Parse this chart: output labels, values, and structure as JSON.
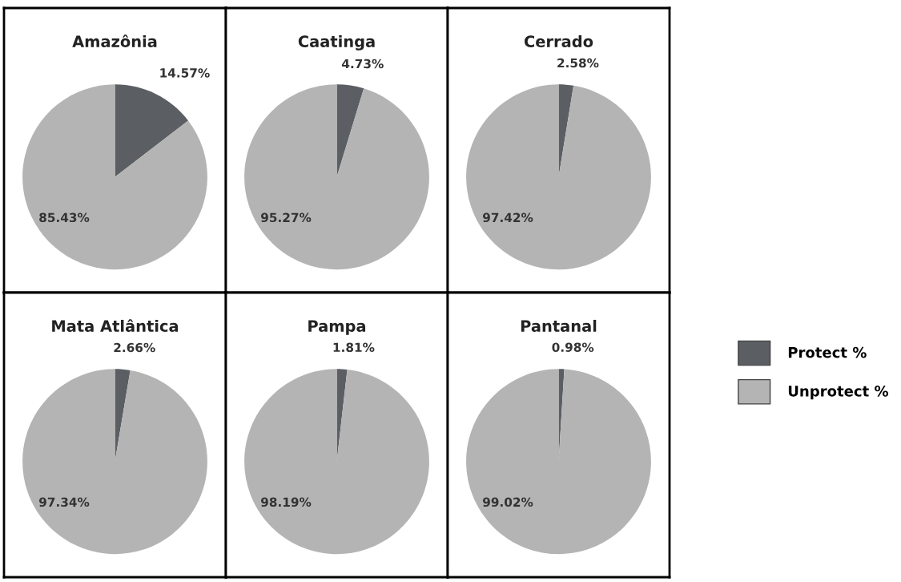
{
  "chart_data": [
    {
      "type": "pie",
      "title": "Amazônia",
      "categories": [
        "Protect %",
        "Unprotect %"
      ],
      "values": [
        14.57,
        85.43
      ],
      "colors": [
        "#5b5f64",
        "#b4b4b4"
      ],
      "value_labels": [
        "14.57%",
        "85.43%"
      ],
      "legend": "right"
    },
    {
      "type": "pie",
      "title": "Caatinga",
      "values": [
        4.73,
        95.27
      ],
      "colors": [
        "#5b5f64",
        "#b4b4b4"
      ],
      "value_labels": [
        "4.73%",
        "95.27%"
      ]
    },
    {
      "type": "pie",
      "title": "Cerrado",
      "values": [
        2.58,
        97.42
      ],
      "colors": [
        "#5b5f64",
        "#b4b4b4"
      ],
      "value_labels": [
        "2.58%",
        "97.42%"
      ]
    },
    {
      "type": "pie",
      "title": "Mata Atlântica",
      "values": [
        2.66,
        97.34
      ],
      "colors": [
        "#5b5f64",
        "#b4b4b4"
      ],
      "value_labels": [
        "2.66%",
        "97.34%"
      ]
    },
    {
      "type": "pie",
      "title": "Pampa",
      "values": [
        1.81,
        98.19
      ],
      "colors": [
        "#5b5f64",
        "#b4b4b4"
      ],
      "value_labels": [
        "1.81%",
        "98.19%"
      ]
    },
    {
      "type": "pie",
      "title": "Pantanal",
      "values": [
        0.98,
        99.02
      ],
      "colors": [
        "#5b5f64",
        "#b4b4b4"
      ],
      "value_labels": [
        "0.98%",
        "99.02%"
      ]
    }
  ]
}
